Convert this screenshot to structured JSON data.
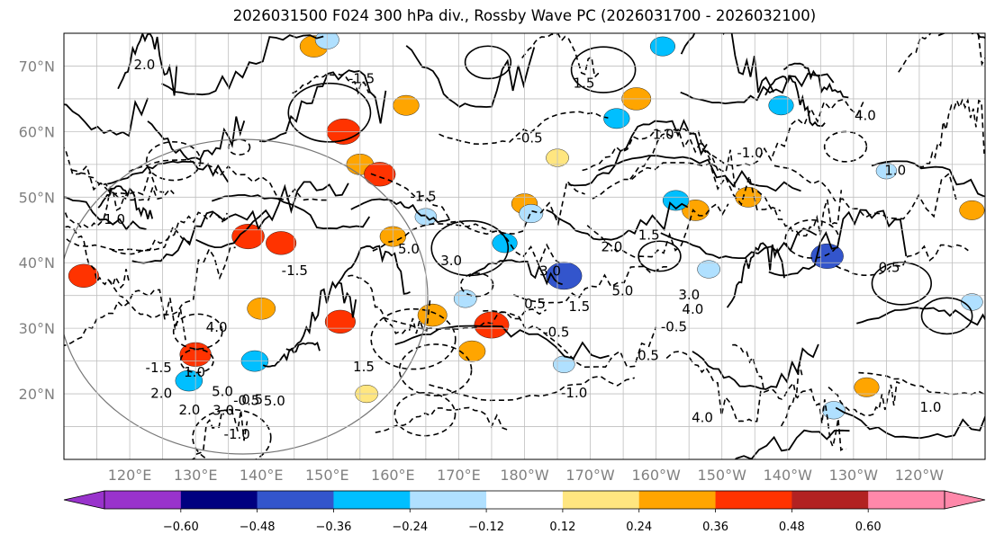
{
  "chart_data": {
    "type": "heatmap",
    "title": "2026031500 F024 300 hPa div., Rossby Wave PC (2026031700 - 2026032100)",
    "projection": "Plate Carree, Pacific-centered",
    "lon_range": [
      110,
      250
    ],
    "lat_range": [
      10,
      75
    ],
    "lat_ticks": [
      {
        "lat": 20,
        "label": "20°N"
      },
      {
        "lat": 30,
        "label": "30°N"
      },
      {
        "lat": 40,
        "label": "40°N"
      },
      {
        "lat": 50,
        "label": "50°N"
      },
      {
        "lat": 60,
        "label": "60°N"
      },
      {
        "lat": 70,
        "label": "70°N"
      }
    ],
    "lon_ticks": [
      {
        "lon": 120,
        "label": "120°E"
      },
      {
        "lon": 130,
        "label": "130°E"
      },
      {
        "lon": 140,
        "label": "140°E"
      },
      {
        "lon": 150,
        "label": "150°E"
      },
      {
        "lon": 160,
        "label": "160°E"
      },
      {
        "lon": 170,
        "label": "170°E"
      },
      {
        "lon": 180,
        "label": "180°W"
      },
      {
        "lon": 190,
        "label": "170°W"
      },
      {
        "lon": 200,
        "label": "160°W"
      },
      {
        "lon": 210,
        "label": "150°W"
      },
      {
        "lon": 220,
        "label": "140°W"
      },
      {
        "lon": 230,
        "label": "130°W"
      },
      {
        "lon": 240,
        "label": "120°W"
      }
    ],
    "grid": true,
    "colorbar": {
      "orientation": "horizontal",
      "extend": "both",
      "boundaries": [
        -0.72,
        -0.6,
        -0.48,
        -0.36,
        -0.24,
        -0.12,
        0.12,
        0.24,
        0.36,
        0.48,
        0.6,
        0.72
      ],
      "tick_values": [
        -0.6,
        -0.48,
        -0.36,
        -0.24,
        -0.12,
        0.12,
        0.24,
        0.36,
        0.48,
        0.6
      ],
      "tick_labels": [
        "−0.60",
        "−0.48",
        "−0.36",
        "−0.24",
        "−0.12",
        "0.12",
        "0.24",
        "0.36",
        "0.48",
        "0.60"
      ],
      "colors": [
        "#9933cc",
        "#000080",
        "#3355cc",
        "#00bfff",
        "#b0e0ff",
        "#ffffff",
        "#ffe680",
        "#ffa500",
        "#ff3300",
        "#b22222",
        "#ff88aa"
      ]
    },
    "shaded_cells": [
      {
        "lon": 152.5,
        "lat": 60,
        "value": 0.42
      },
      {
        "lon": 155,
        "lat": 55,
        "value": 0.3
      },
      {
        "lon": 158,
        "lat": 53.5,
        "value": 0.38
      },
      {
        "lon": 162,
        "lat": 64,
        "value": 0.28
      },
      {
        "lon": 148,
        "lat": 73,
        "value": 0.32
      },
      {
        "lon": 138,
        "lat": 44,
        "value": 0.4
      },
      {
        "lon": 143,
        "lat": 43,
        "value": 0.36
      },
      {
        "lon": 130,
        "lat": 26,
        "value": 0.38
      },
      {
        "lon": 140,
        "lat": 33,
        "value": 0.32
      },
      {
        "lon": 152,
        "lat": 31,
        "value": 0.36
      },
      {
        "lon": 166,
        "lat": 32,
        "value": 0.34
      },
      {
        "lon": 172,
        "lat": 26.5,
        "value": 0.3
      },
      {
        "lon": 175,
        "lat": 30.5,
        "value": 0.44
      },
      {
        "lon": 160,
        "lat": 44,
        "value": 0.28
      },
      {
        "lon": 113,
        "lat": 38,
        "value": 0.36
      },
      {
        "lon": 197,
        "lat": 65,
        "value": 0.34
      },
      {
        "lon": 206,
        "lat": 48,
        "value": 0.3
      },
      {
        "lon": 214,
        "lat": 50,
        "value": 0.28
      },
      {
        "lon": 180,
        "lat": 49,
        "value": 0.28
      },
      {
        "lon": 232,
        "lat": 21,
        "value": 0.26
      },
      {
        "lon": 248,
        "lat": 48,
        "value": 0.26
      },
      {
        "lon": 156,
        "lat": 20,
        "value": 0.22
      },
      {
        "lon": 185,
        "lat": 56,
        "value": 0.22
      },
      {
        "lon": 129,
        "lat": 22,
        "value": -0.3
      },
      {
        "lon": 139,
        "lat": 25,
        "value": -0.3
      },
      {
        "lon": 186,
        "lat": 38,
        "value": -0.46
      },
      {
        "lon": 226,
        "lat": 41,
        "value": -0.4
      },
      {
        "lon": 203,
        "lat": 49.5,
        "value": -0.28
      },
      {
        "lon": 219,
        "lat": 64,
        "value": -0.26
      },
      {
        "lon": 194,
        "lat": 62,
        "value": -0.28
      },
      {
        "lon": 177,
        "lat": 43,
        "value": -0.26
      },
      {
        "lon": 150,
        "lat": 74,
        "value": -0.24
      },
      {
        "lon": 201,
        "lat": 73,
        "value": -0.26
      },
      {
        "lon": 165,
        "lat": 47,
        "value": -0.2
      },
      {
        "lon": 171,
        "lat": 34.5,
        "value": -0.22
      },
      {
        "lon": 181,
        "lat": 47.5,
        "value": -0.24
      },
      {
        "lon": 208,
        "lat": 39,
        "value": -0.22
      },
      {
        "lon": 227,
        "lat": 17.5,
        "value": -0.22
      },
      {
        "lon": 248,
        "lat": 34,
        "value": -0.2
      },
      {
        "lon": 235,
        "lat": 54,
        "value": -0.18
      },
      {
        "lon": 186,
        "lat": 24.5,
        "value": -0.2
      }
    ],
    "contour_labels": [
      "0.5",
      "1.0",
      "1.5",
      "2.0",
      "3.0",
      "4.0",
      "5.0",
      "-0.5",
      "-1.0",
      "-1.5"
    ]
  }
}
